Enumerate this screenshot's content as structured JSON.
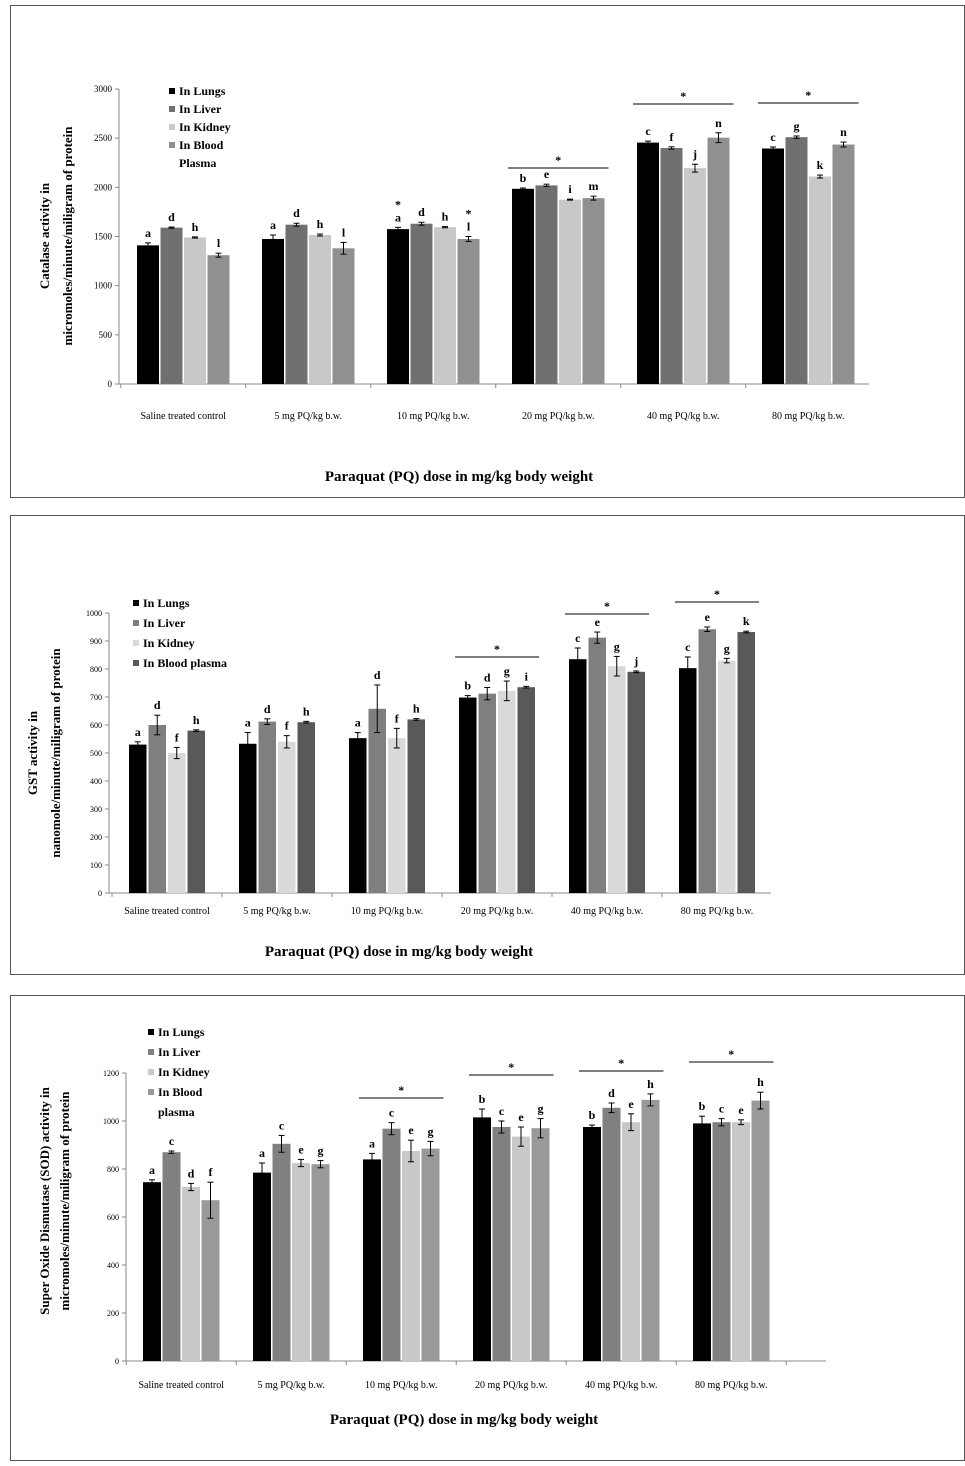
{
  "colors": {
    "chart1": [
      "#000000",
      "#707070",
      "#c8c8c8",
      "#909090"
    ],
    "chart2": [
      "#000000",
      "#7f7f7f",
      "#d9d9d9",
      "#595959"
    ],
    "chart3": [
      "#000000",
      "#808080",
      "#c8c8c8",
      "#999999"
    ]
  },
  "chart_data": [
    {
      "type": "bar",
      "xlabel": "Paraquat (PQ) dose in mg/kg body weight",
      "ylabel_lines": [
        "Catalase activity in",
        "micromoles/minute/miligram of protein"
      ],
      "ylim": [
        0,
        3000
      ],
      "yticks": [
        "0",
        "500",
        "1000",
        "1500",
        "2000",
        "2500",
        "3000"
      ],
      "categories": [
        "Saline treated control",
        "5 mg PQ/kg b.w.",
        "10 mg PQ/kg b.w.",
        "20 mg PQ/kg b.w.",
        "40 mg PQ/kg b.w.",
        "80 mg PQ/kg b.w."
      ],
      "legend_position": "top-left",
      "series": [
        {
          "name": "In Lungs",
          "values": [
            1410,
            1475,
            1575,
            1985,
            2455,
            2395
          ],
          "errors": [
            25,
            40,
            18,
            8,
            15,
            15
          ],
          "letters": [
            "a",
            "a",
            "a",
            "b",
            "c",
            "c"
          ]
        },
        {
          "name": "In Liver",
          "values": [
            1590,
            1620,
            1630,
            2020,
            2400,
            2510
          ],
          "errors": [
            6,
            15,
            15,
            12,
            12,
            12
          ],
          "letters": [
            "d",
            "d",
            "d",
            "e",
            "f",
            "g"
          ]
        },
        {
          "name": "In Kidney",
          "values": [
            1490,
            1515,
            1595,
            1875,
            2195,
            2110
          ],
          "errors": [
            6,
            10,
            6,
            5,
            40,
            15
          ],
          "letters": [
            "h",
            "h",
            "h",
            "i",
            "j",
            "k"
          ]
        },
        {
          "name": "In Blood Plasma",
          "legend_lines": [
            "In Blood",
            "Plasma"
          ],
          "values": [
            1310,
            1380,
            1475,
            1890,
            2505,
            2435
          ],
          "errors": [
            20,
            60,
            25,
            20,
            50,
            25
          ],
          "letters": [
            "l",
            "l",
            "l",
            "m",
            "n",
            "n"
          ]
        }
      ],
      "extra_marks": [
        {
          "group": 2,
          "series": 0,
          "text": "*"
        },
        {
          "group": 2,
          "series": 3,
          "text": "*"
        }
      ],
      "significance": [
        {
          "groups": 3,
          "text": "*"
        },
        {
          "groups": 4,
          "text": "*"
        },
        {
          "groups": 5,
          "text": "*"
        }
      ]
    },
    {
      "type": "bar",
      "xlabel": "Paraquat (PQ) dose in mg/kg body weight",
      "ylabel_lines": [
        "GST activity in",
        "nanomole/minute/miligram of protein"
      ],
      "ylim": [
        0,
        1000
      ],
      "yticks": [
        "0",
        "100",
        "200",
        "300",
        "400",
        "500",
        "600",
        "700",
        "800",
        "900",
        "1000"
      ],
      "categories": [
        "Saline treated control",
        "5 mg PQ/kg b.w.",
        "10 mg PQ/kg b.w.",
        "20 mg PQ/kg b.w.",
        "40 mg PQ/kg b.w.",
        "80 mg PQ/kg b.w."
      ],
      "legend_position": "top-left",
      "series": [
        {
          "name": "In Lungs",
          "values": [
            530,
            533,
            553,
            698,
            835,
            803
          ],
          "errors": [
            10,
            40,
            20,
            7,
            40,
            40
          ],
          "letters": [
            "a",
            "a",
            "a",
            "b",
            "c",
            "c"
          ]
        },
        {
          "name": "In Liver",
          "values": [
            600,
            612,
            658,
            712,
            912,
            942
          ],
          "errors": [
            35,
            10,
            85,
            22,
            20,
            8
          ],
          "letters": [
            "d",
            "d",
            "d",
            "d",
            "e",
            "e"
          ]
        },
        {
          "name": "In Kidney",
          "values": [
            500,
            540,
            553,
            722,
            810,
            830
          ],
          "errors": [
            20,
            22,
            35,
            35,
            35,
            8
          ],
          "letters": [
            "f",
            "f",
            "f",
            "g",
            "g",
            "g"
          ]
        },
        {
          "name": "In Blood plasma",
          "legend_lines": [
            "In Blood plasma"
          ],
          "values": [
            580,
            610,
            620,
            735,
            790,
            932
          ],
          "errors": [
            3,
            3,
            3,
            3,
            3,
            3
          ],
          "letters": [
            "h",
            "h",
            "h",
            "i",
            "j",
            "k"
          ]
        }
      ],
      "extra_marks": [],
      "significance": [
        {
          "groups": 3,
          "text": "*"
        },
        {
          "groups": 4,
          "text": "*"
        },
        {
          "groups": 5,
          "text": "*"
        }
      ]
    },
    {
      "type": "bar",
      "xlabel": "Paraquat (PQ) dose in mg/kg body weight",
      "ylabel_lines": [
        "Super Oxide Dismutase (SOD) activity in",
        "micromoles/minute/miligram of protein"
      ],
      "ylim": [
        0,
        1200
      ],
      "yticks": [
        "0",
        "200",
        "400",
        "600",
        "800",
        "1000",
        "1200"
      ],
      "categories": [
        "Saline treated control",
        "5 mg PQ/kg b.w.",
        "10 mg PQ/kg b.w.",
        "20 mg PQ/kg b.w.",
        "40 mg PQ/kg b.w.",
        "80 mg PQ/kg b.w."
      ],
      "legend_position": "top-left",
      "series": [
        {
          "name": "In Lungs",
          "values": [
            745,
            785,
            840,
            1015,
            975,
            990
          ],
          "errors": [
            10,
            40,
            25,
            35,
            8,
            30
          ],
          "letters": [
            "a",
            "a",
            "a",
            "b",
            "b",
            "b"
          ]
        },
        {
          "name": "In Liver",
          "values": [
            870,
            905,
            968,
            975,
            1055,
            995
          ],
          "errors": [
            5,
            35,
            25,
            25,
            20,
            15
          ],
          "letters": [
            "c",
            "c",
            "c",
            "c",
            "d",
            "c"
          ]
        },
        {
          "name": "In Kidney",
          "values": [
            725,
            825,
            875,
            935,
            995,
            995
          ],
          "errors": [
            15,
            15,
            45,
            40,
            35,
            10
          ],
          "letters": [
            "d",
            "e",
            "e",
            "e",
            "e",
            "e"
          ]
        },
        {
          "name": "In Blood plasma",
          "legend_lines": [
            "In Blood",
            "plasma"
          ],
          "values": [
            670,
            820,
            885,
            970,
            1088,
            1085
          ],
          "errors": [
            75,
            15,
            30,
            40,
            25,
            35
          ],
          "letters": [
            "f",
            "g",
            "g",
            "g",
            "h",
            "h"
          ]
        }
      ],
      "extra_marks": [],
      "significance": [
        {
          "groups": 2,
          "text": "*"
        },
        {
          "groups": 3,
          "text": "*"
        },
        {
          "groups": 4,
          "text": "*"
        },
        {
          "groups": 5,
          "text": "*"
        }
      ]
    }
  ]
}
